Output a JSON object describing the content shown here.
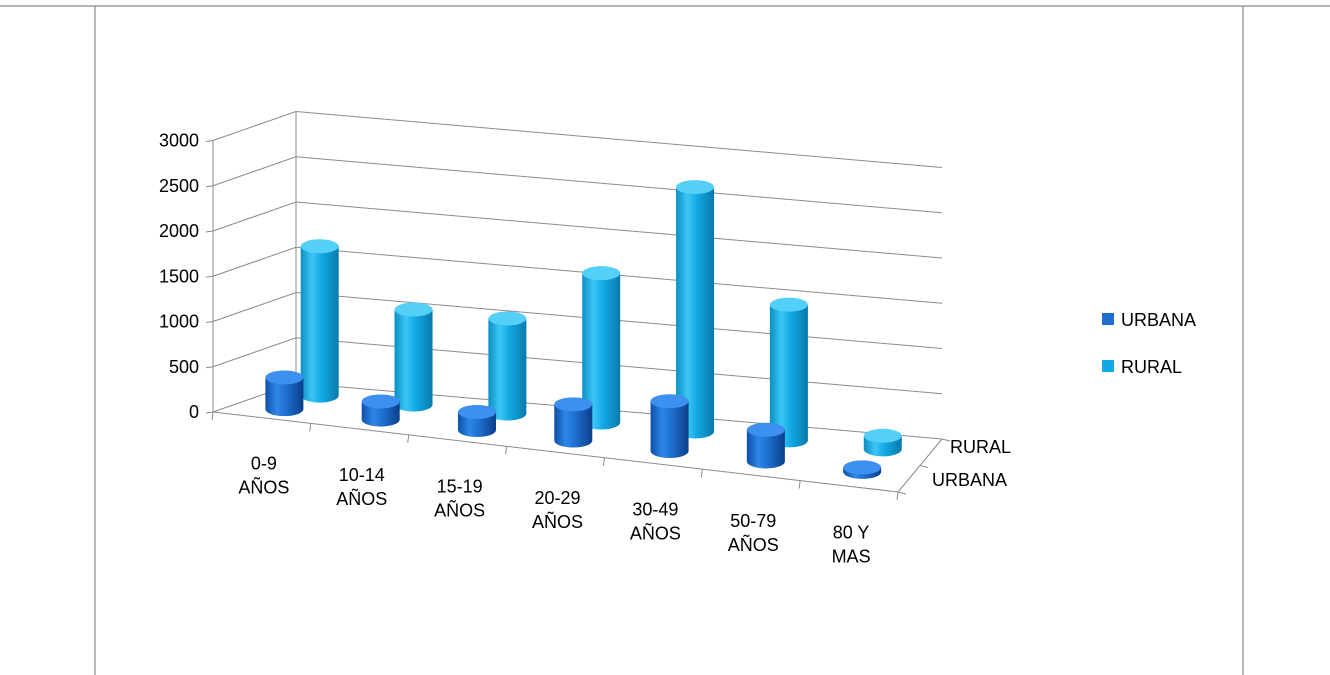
{
  "chart_data": {
    "type": "bar",
    "style": "3d-cylinder",
    "categories": [
      "0-9 AÑOS",
      "10-14 AÑOS",
      "15-19 AÑOS",
      "20-29 AÑOS",
      "30-49 AÑOS",
      "50-79 AÑOS",
      "80 Y MAS"
    ],
    "series": [
      {
        "name": "URBANA",
        "values": [
          350,
          200,
          200,
          400,
          550,
          350,
          50
        ],
        "color": "#1f6fce"
      },
      {
        "name": "RURAL",
        "values": [
          1650,
          1050,
          1050,
          1650,
          2700,
          1500,
          150
        ],
        "color": "#12a9e4"
      }
    ],
    "y_ticks": [
      "0",
      "500",
      "1000",
      "1500",
      "2000",
      "2500",
      "3000"
    ],
    "ylim": [
      0,
      3000
    ],
    "depth_labels": [
      "RURAL",
      "URBANA"
    ],
    "legend": {
      "position": "right",
      "items": [
        "URBANA",
        "RURAL"
      ]
    },
    "grid": true,
    "title": "",
    "xlabel": "",
    "ylabel": ""
  }
}
